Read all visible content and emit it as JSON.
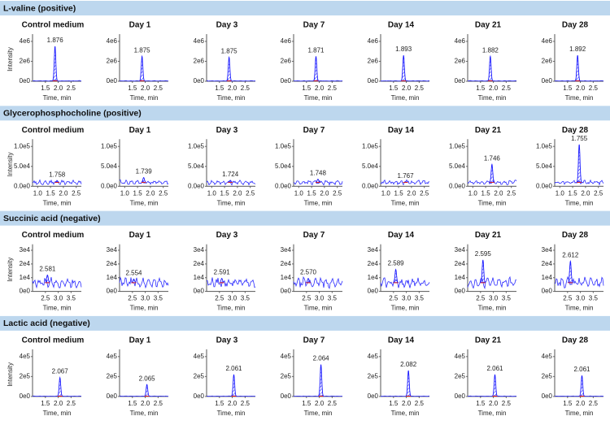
{
  "sections": [
    {
      "title": "L-valine (positive)",
      "xlabel": "Time, min",
      "ylabel": "Intensity",
      "xlim": [
        1.0,
        2.9
      ],
      "xticks": [
        {
          "value": 1.5,
          "label": "1.5"
        },
        {
          "value": 2,
          "label": "2.0"
        },
        {
          "value": 2.5,
          "label": "2.5"
        }
      ],
      "ylim": [
        0,
        4400000
      ],
      "yticks": [
        {
          "value": 0,
          "label": "0e0"
        },
        {
          "value": 2000000,
          "label": "2e6"
        },
        {
          "value": 4000000,
          "label": "4e6"
        }
      ],
      "panels": [
        {
          "title": "Control medium",
          "rt": 1.876,
          "rt_label": "1.876",
          "height": 3500000
        },
        {
          "title": "Day 1",
          "rt": 1.875,
          "rt_label": "1.875",
          "height": 2500000
        },
        {
          "title": "Day 3",
          "rt": 1.875,
          "rt_label": "1.875",
          "height": 2400000
        },
        {
          "title": "Day 7",
          "rt": 1.871,
          "rt_label": "1.871",
          "height": 2500000
        },
        {
          "title": "Day 14",
          "rt": 1.893,
          "rt_label": "1.893",
          "height": 2600000
        },
        {
          "title": "Day 21",
          "rt": 1.882,
          "rt_label": "1.882",
          "height": 2500000
        },
        {
          "title": "Day 28",
          "rt": 1.892,
          "rt_label": "1.892",
          "height": 2600000
        }
      ]
    },
    {
      "title": "Glycerophosphocholine  (positive)",
      "xlabel": "Time, min",
      "ylabel": "Intensity",
      "xlim": [
        0.8,
        2.7
      ],
      "xticks": [
        {
          "value": 1,
          "label": "1.0"
        },
        {
          "value": 1.5,
          "label": "1.5"
        },
        {
          "value": 2,
          "label": "2.0"
        },
        {
          "value": 2.5,
          "label": "2.5"
        }
      ],
      "ylim": [
        0,
        110000
      ],
      "yticks": [
        {
          "value": 0,
          "label": "0.0e0"
        },
        {
          "value": 50000,
          "label": "5.0e4"
        },
        {
          "value": 100000,
          "label": "1.0e5"
        }
      ],
      "panels": [
        {
          "title": "Control medium",
          "rt": 1.758,
          "rt_label": "1.758",
          "height": 14000
        },
        {
          "title": "Day 1",
          "rt": 1.739,
          "rt_label": "1.739",
          "height": 22000
        },
        {
          "title": "Day 3",
          "rt": 1.724,
          "rt_label": "1.724",
          "height": 15000
        },
        {
          "title": "Day 7",
          "rt": 1.748,
          "rt_label": "1.748",
          "height": 18000
        },
        {
          "title": "Day 14",
          "rt": 1.767,
          "rt_label": "1.767",
          "height": 11000
        },
        {
          "title": "Day 21",
          "rt": 1.746,
          "rt_label": "1.746",
          "height": 55000
        },
        {
          "title": "Day 28",
          "rt": 1.755,
          "rt_label": "1.755",
          "height": 105000
        }
      ]
    },
    {
      "title": "Succinic acid (negative)",
      "xlabel": "Time, min",
      "ylabel": "Intensity",
      "xlim": [
        2.0,
        3.9
      ],
      "xticks": [
        {
          "value": 2.5,
          "label": "2.5"
        },
        {
          "value": 3,
          "label": "3.0"
        },
        {
          "value": 3.5,
          "label": "3.5"
        }
      ],
      "ylim": [
        0,
        32000
      ],
      "yticks": [
        {
          "value": 0,
          "label": "0e0"
        },
        {
          "value": 10000,
          "label": "1e4"
        },
        {
          "value": 20000,
          "label": "2e4"
        },
        {
          "value": 30000,
          "label": "3e4"
        }
      ],
      "panels": [
        {
          "title": "Control medium",
          "rt": 2.581,
          "rt_label": "2.581",
          "height": 12000
        },
        {
          "title": "Day 1",
          "rt": 2.554,
          "rt_label": "2.554",
          "height": 9000
        },
        {
          "title": "Day 3",
          "rt": 2.591,
          "rt_label": "2.591",
          "height": 9500
        },
        {
          "title": "Day 7",
          "rt": 2.57,
          "rt_label": "2.570",
          "height": 9500
        },
        {
          "title": "Day 14",
          "rt": 2.589,
          "rt_label": "2.589",
          "height": 16000
        },
        {
          "title": "Day 21",
          "rt": 2.595,
          "rt_label": "2.595",
          "height": 23000
        },
        {
          "title": "Day 28",
          "rt": 2.612,
          "rt_label": "2.612",
          "height": 22000
        }
      ]
    },
    {
      "title": "Lactic acid (negative)",
      "xlabel": "Time, min",
      "ylabel": "Intensity",
      "xlim": [
        1.0,
        2.9
      ],
      "xticks": [
        {
          "value": 1.5,
          "label": "1.5"
        },
        {
          "value": 2,
          "label": "2.0"
        },
        {
          "value": 2.5,
          "label": "2.5"
        }
      ],
      "ylim": [
        0,
        440000
      ],
      "yticks": [
        {
          "value": 0,
          "label": "0e0"
        },
        {
          "value": 200000,
          "label": "2e5"
        },
        {
          "value": 400000,
          "label": "4e5"
        }
      ],
      "panels": [
        {
          "title": "Control medium",
          "rt": 2.067,
          "rt_label": "2.067",
          "height": 190000
        },
        {
          "title": "Day 1",
          "rt": 2.065,
          "rt_label": "2.065",
          "height": 120000
        },
        {
          "title": "Day 3",
          "rt": 2.061,
          "rt_label": "2.061",
          "height": 220000
        },
        {
          "title": "Day 7",
          "rt": 2.064,
          "rt_label": "2.064",
          "height": 320000
        },
        {
          "title": "Day 14",
          "rt": 2.082,
          "rt_label": "2.082",
          "height": 260000
        },
        {
          "title": "Day 21",
          "rt": 2.061,
          "rt_label": "2.061",
          "height": 220000
        },
        {
          "title": "Day 28",
          "rt": 2.061,
          "rt_label": "2.061",
          "height": 210000
        }
      ]
    }
  ]
}
